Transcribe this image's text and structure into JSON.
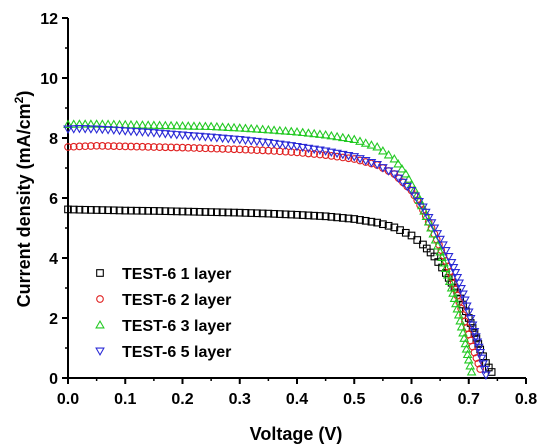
{
  "chart_data": {
    "type": "scatter",
    "title": "",
    "xlabel": "Voltage (V)",
    "ylabel_main": "Current density (mA/cm",
    "ylabel_sup": "2",
    "ylabel_close": ")",
    "xlim": [
      0.0,
      0.8
    ],
    "ylim": [
      0,
      12
    ],
    "xticks": [
      "0.0",
      "0.1",
      "0.2",
      "0.3",
      "0.4",
      "0.5",
      "0.6",
      "0.7",
      "0.8"
    ],
    "yticks": [
      "0",
      "2",
      "4",
      "6",
      "8",
      "10",
      "12"
    ],
    "grid": false,
    "legend_position": "bottom-left",
    "series": [
      {
        "name": "TEST-6 1 layer",
        "marker": "square",
        "color": "#000000",
        "points": [
          [
            0.0,
            5.62
          ],
          [
            0.02,
            5.61
          ],
          [
            0.05,
            5.6
          ],
          [
            0.08,
            5.59
          ],
          [
            0.1,
            5.58
          ],
          [
            0.15,
            5.57
          ],
          [
            0.2,
            5.55
          ],
          [
            0.25,
            5.53
          ],
          [
            0.3,
            5.51
          ],
          [
            0.35,
            5.48
          ],
          [
            0.4,
            5.44
          ],
          [
            0.45,
            5.39
          ],
          [
            0.5,
            5.3
          ],
          [
            0.54,
            5.18
          ],
          [
            0.57,
            5.02
          ],
          [
            0.6,
            4.75
          ],
          [
            0.62,
            4.45
          ],
          [
            0.64,
            4.05
          ],
          [
            0.66,
            3.5
          ],
          [
            0.68,
            2.85
          ],
          [
            0.69,
            2.45
          ],
          [
            0.7,
            2.0
          ],
          [
            0.71,
            1.5
          ],
          [
            0.72,
            0.95
          ],
          [
            0.73,
            0.5
          ],
          [
            0.74,
            0.2
          ]
        ]
      },
      {
        "name": "TEST-6 2 layer",
        "marker": "circle",
        "color": "#e02020",
        "points": [
          [
            0.0,
            7.7
          ],
          [
            0.02,
            7.72
          ],
          [
            0.05,
            7.74
          ],
          [
            0.08,
            7.73
          ],
          [
            0.1,
            7.72
          ],
          [
            0.15,
            7.7
          ],
          [
            0.2,
            7.68
          ],
          [
            0.25,
            7.65
          ],
          [
            0.3,
            7.62
          ],
          [
            0.35,
            7.58
          ],
          [
            0.4,
            7.52
          ],
          [
            0.45,
            7.43
          ],
          [
            0.5,
            7.3
          ],
          [
            0.54,
            7.1
          ],
          [
            0.57,
            6.8
          ],
          [
            0.6,
            6.25
          ],
          [
            0.62,
            5.6
          ],
          [
            0.64,
            4.8
          ],
          [
            0.66,
            3.9
          ],
          [
            0.67,
            3.35
          ],
          [
            0.68,
            2.75
          ],
          [
            0.69,
            2.1
          ],
          [
            0.7,
            1.45
          ],
          [
            0.71,
            0.85
          ],
          [
            0.72,
            0.3
          ]
        ]
      },
      {
        "name": "TEST-6 3 layer",
        "marker": "triangle-up",
        "color": "#22c922",
        "points": [
          [
            0.0,
            8.45
          ],
          [
            0.02,
            8.46
          ],
          [
            0.05,
            8.46
          ],
          [
            0.08,
            8.45
          ],
          [
            0.1,
            8.44
          ],
          [
            0.15,
            8.42
          ],
          [
            0.2,
            8.4
          ],
          [
            0.25,
            8.38
          ],
          [
            0.3,
            8.33
          ],
          [
            0.35,
            8.27
          ],
          [
            0.4,
            8.2
          ],
          [
            0.45,
            8.1
          ],
          [
            0.5,
            7.95
          ],
          [
            0.54,
            7.7
          ],
          [
            0.57,
            7.3
          ],
          [
            0.59,
            6.8
          ],
          [
            0.61,
            6.1
          ],
          [
            0.63,
            5.2
          ],
          [
            0.65,
            4.2
          ],
          [
            0.66,
            3.65
          ],
          [
            0.67,
            3.0
          ],
          [
            0.68,
            2.3
          ],
          [
            0.69,
            1.5
          ],
          [
            0.7,
            0.6
          ],
          [
            0.705,
            0.2
          ]
        ]
      },
      {
        "name": "TEST-6 5 layer",
        "marker": "triangle-down",
        "color": "#2a2ad6",
        "points": [
          [
            0.0,
            8.3
          ],
          [
            0.02,
            8.32
          ],
          [
            0.05,
            8.3
          ],
          [
            0.08,
            8.27
          ],
          [
            0.1,
            8.24
          ],
          [
            0.15,
            8.18
          ],
          [
            0.2,
            8.1
          ],
          [
            0.25,
            8.03
          ],
          [
            0.3,
            7.95
          ],
          [
            0.35,
            7.85
          ],
          [
            0.4,
            7.72
          ],
          [
            0.45,
            7.57
          ],
          [
            0.5,
            7.38
          ],
          [
            0.54,
            7.12
          ],
          [
            0.57,
            6.8
          ],
          [
            0.6,
            6.25
          ],
          [
            0.62,
            5.7
          ],
          [
            0.64,
            5.0
          ],
          [
            0.66,
            4.25
          ],
          [
            0.67,
            3.85
          ],
          [
            0.68,
            3.35
          ],
          [
            0.69,
            2.8
          ],
          [
            0.7,
            2.2
          ],
          [
            0.71,
            1.55
          ],
          [
            0.72,
            0.85
          ],
          [
            0.73,
            0.1
          ]
        ]
      }
    ]
  }
}
